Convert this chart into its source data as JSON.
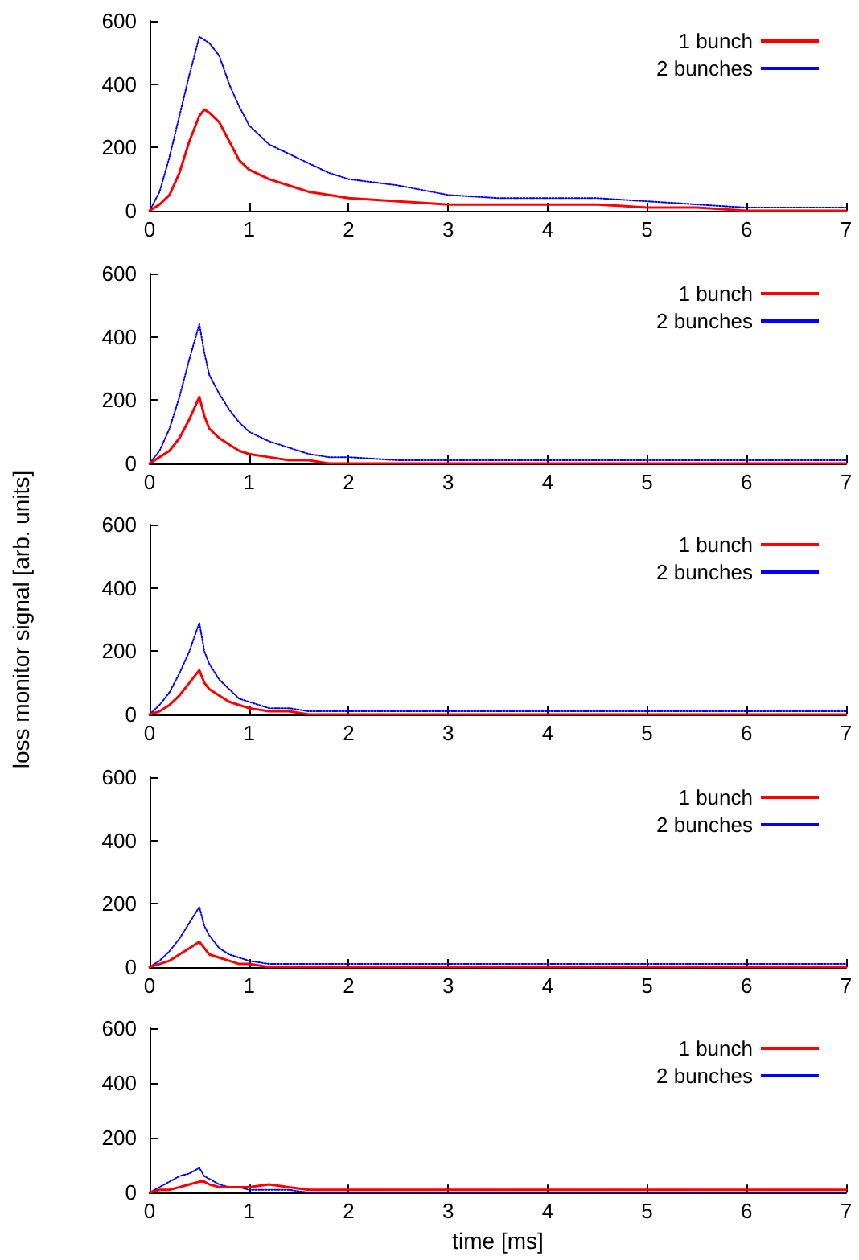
{
  "chart_data": [
    {
      "type": "line",
      "x": [
        0,
        0.1,
        0.2,
        0.3,
        0.4,
        0.5,
        0.55,
        0.6,
        0.7,
        0.8,
        0.9,
        1.0,
        1.2,
        1.4,
        1.6,
        1.8,
        2.0,
        2.5,
        3,
        3.5,
        4,
        4.5,
        5,
        5.5,
        6,
        6.5,
        7
      ],
      "xlim": [
        0,
        7
      ],
      "xticks": [
        0,
        1,
        2,
        3,
        4,
        5,
        6,
        7
      ],
      "ylim": [
        0,
        600
      ],
      "yticks": [
        0,
        200,
        400,
        600
      ],
      "legend": "top right",
      "grid": false,
      "marker": "none",
      "series": [
        {
          "name": "1 bunch",
          "color": "#ff0000",
          "line_style": "solid",
          "values": [
            0,
            20,
            50,
            120,
            220,
            300,
            320,
            310,
            280,
            220,
            160,
            130,
            100,
            80,
            60,
            50,
            40,
            30,
            20,
            20,
            20,
            20,
            10,
            10,
            0,
            0,
            0
          ]
        },
        {
          "name": "2 bunches",
          "color": "#0000ff",
          "line_style": "dotted",
          "values": [
            0,
            60,
            170,
            300,
            430,
            550,
            540,
            530,
            490,
            400,
            330,
            270,
            210,
            180,
            150,
            120,
            100,
            80,
            50,
            40,
            40,
            40,
            30,
            20,
            10,
            10,
            10
          ]
        }
      ]
    },
    {
      "type": "line",
      "x": [
        0,
        0.1,
        0.2,
        0.3,
        0.4,
        0.5,
        0.55,
        0.6,
        0.7,
        0.8,
        0.9,
        1.0,
        1.2,
        1.4,
        1.6,
        1.8,
        2.0,
        2.5,
        3,
        3.5,
        4,
        4.5,
        5,
        5.5,
        6,
        6.5,
        7
      ],
      "xlim": [
        0,
        7
      ],
      "xticks": [
        0,
        1,
        2,
        3,
        4,
        5,
        6,
        7
      ],
      "ylim": [
        0,
        600
      ],
      "yticks": [
        0,
        200,
        400,
        600
      ],
      "legend": "top right",
      "grid": false,
      "marker": "none",
      "series": [
        {
          "name": "1 bunch",
          "color": "#ff0000",
          "line_style": "solid",
          "values": [
            0,
            20,
            40,
            80,
            140,
            210,
            150,
            110,
            80,
            60,
            40,
            30,
            20,
            10,
            10,
            0,
            0,
            0,
            0,
            0,
            0,
            0,
            0,
            0,
            0,
            0,
            0
          ]
        },
        {
          "name": "2 bunches",
          "color": "#0000ff",
          "line_style": "dotted",
          "values": [
            0,
            40,
            110,
            210,
            330,
            440,
            350,
            280,
            220,
            170,
            130,
            100,
            70,
            50,
            30,
            20,
            20,
            10,
            10,
            10,
            10,
            10,
            10,
            10,
            10,
            10,
            10
          ]
        }
      ]
    },
    {
      "type": "line",
      "ylabel": "loss monitor signal [arb. units]",
      "x": [
        0,
        0.1,
        0.2,
        0.3,
        0.4,
        0.5,
        0.55,
        0.6,
        0.7,
        0.8,
        0.9,
        1.0,
        1.2,
        1.4,
        1.6,
        1.8,
        2.0,
        2.5,
        3,
        3.5,
        4,
        4.5,
        5,
        5.5,
        6,
        6.5,
        7
      ],
      "xlim": [
        0,
        7
      ],
      "xticks": [
        0,
        1,
        2,
        3,
        4,
        5,
        6,
        7
      ],
      "ylim": [
        0,
        600
      ],
      "yticks": [
        0,
        200,
        400,
        600
      ],
      "legend": "top right",
      "grid": false,
      "marker": "none",
      "series": [
        {
          "name": "1 bunch",
          "color": "#ff0000",
          "line_style": "solid",
          "values": [
            0,
            10,
            30,
            60,
            100,
            140,
            100,
            80,
            60,
            40,
            30,
            20,
            10,
            10,
            0,
            0,
            0,
            0,
            0,
            0,
            0,
            0,
            0,
            0,
            0,
            0,
            0
          ]
        },
        {
          "name": "2 bunches",
          "color": "#0000ff",
          "line_style": "dotted",
          "values": [
            0,
            30,
            70,
            130,
            200,
            290,
            200,
            160,
            110,
            80,
            50,
            40,
            20,
            20,
            10,
            10,
            10,
            10,
            10,
            10,
            10,
            10,
            10,
            10,
            10,
            10,
            10
          ]
        }
      ]
    },
    {
      "type": "line",
      "x": [
        0,
        0.1,
        0.2,
        0.3,
        0.4,
        0.5,
        0.55,
        0.6,
        0.7,
        0.8,
        0.9,
        1.0,
        1.2,
        1.4,
        1.6,
        1.8,
        2.0,
        2.5,
        3,
        3.5,
        4,
        4.5,
        5,
        5.5,
        6,
        6.5,
        7
      ],
      "xlim": [
        0,
        7
      ],
      "xticks": [
        0,
        1,
        2,
        3,
        4,
        5,
        6,
        7
      ],
      "ylim": [
        0,
        600
      ],
      "yticks": [
        0,
        200,
        400,
        600
      ],
      "legend": "top right",
      "grid": false,
      "marker": "none",
      "series": [
        {
          "name": "1 bunch",
          "color": "#ff0000",
          "line_style": "solid",
          "values": [
            0,
            10,
            20,
            40,
            60,
            80,
            60,
            40,
            30,
            20,
            10,
            10,
            0,
            0,
            0,
            0,
            0,
            0,
            0,
            0,
            0,
            0,
            0,
            0,
            0,
            0,
            0
          ]
        },
        {
          "name": "2 bunches",
          "color": "#0000ff",
          "line_style": "dotted",
          "values": [
            0,
            20,
            50,
            90,
            140,
            190,
            130,
            100,
            60,
            40,
            30,
            20,
            10,
            10,
            10,
            10,
            10,
            10,
            10,
            10,
            10,
            10,
            10,
            10,
            10,
            10,
            10
          ]
        }
      ]
    },
    {
      "type": "line",
      "xlabel": "time [ms]",
      "x": [
        0,
        0.1,
        0.2,
        0.3,
        0.4,
        0.5,
        0.55,
        0.6,
        0.7,
        0.8,
        0.9,
        1.0,
        1.2,
        1.4,
        1.6,
        1.8,
        2.0,
        2.5,
        3,
        3.5,
        4,
        4.5,
        5,
        5.5,
        6,
        6.5,
        7
      ],
      "xlim": [
        0,
        7
      ],
      "xticks": [
        0,
        1,
        2,
        3,
        4,
        5,
        6,
        7
      ],
      "ylim": [
        0,
        600
      ],
      "yticks": [
        0,
        200,
        400,
        600
      ],
      "legend": "top right",
      "grid": false,
      "marker": "none",
      "series": [
        {
          "name": "1 bunch",
          "color": "#ff0000",
          "line_style": "solid",
          "values": [
            0,
            10,
            10,
            20,
            30,
            40,
            40,
            30,
            20,
            20,
            20,
            20,
            30,
            20,
            10,
            10,
            10,
            10,
            10,
            10,
            10,
            10,
            10,
            10,
            10,
            10,
            10
          ]
        },
        {
          "name": "2 bunches",
          "color": "#0000ff",
          "line_style": "dotted",
          "values": [
            0,
            20,
            40,
            60,
            70,
            90,
            60,
            50,
            30,
            20,
            20,
            10,
            10,
            10,
            0,
            0,
            0,
            0,
            0,
            0,
            0,
            0,
            0,
            0,
            0,
            0,
            0
          ]
        }
      ]
    }
  ]
}
